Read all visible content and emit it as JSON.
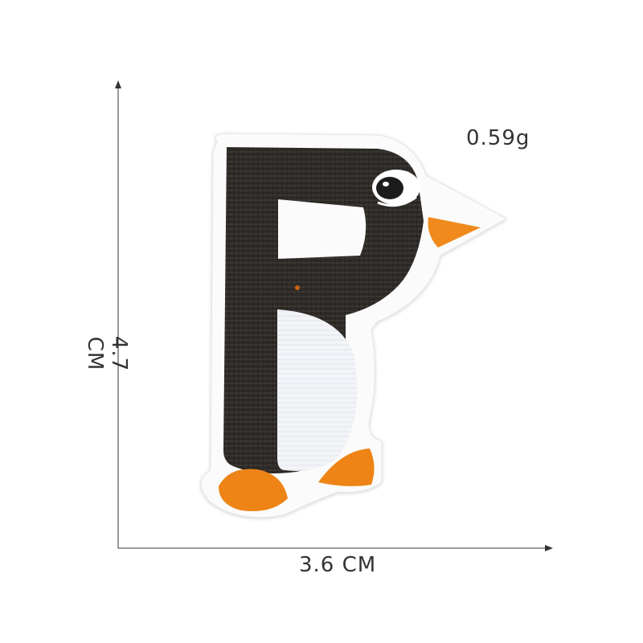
{
  "dimensions": {
    "height_label": "4.7 CM",
    "width_label": "3.6 CM"
  },
  "product": {
    "weight_label": "0.59g",
    "description_letter": "P",
    "colors": {
      "body": "#2e2a28",
      "belly": "#f3f4f8",
      "beak": "#f08a1a",
      "feet": "#ee8416",
      "border": "#fbfbfb"
    }
  }
}
